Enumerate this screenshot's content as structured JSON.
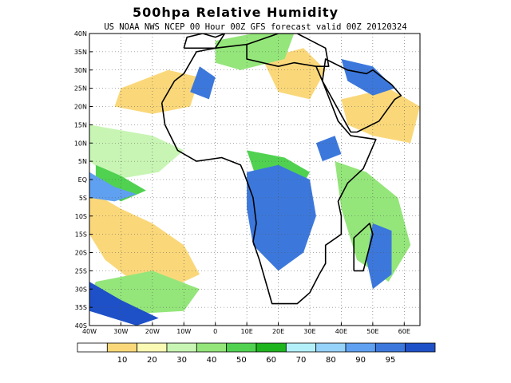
{
  "title": "500hpa Relative Humidity",
  "subtitle": "US NOAA NWS NCEP 00 Hour 00Z GFS forecast valid 00Z 20120324",
  "map": {
    "lon_range": [
      -40,
      65
    ],
    "lat_range": [
      -40,
      40
    ],
    "lat_ticks": [
      {
        "value": 40,
        "label": "40N"
      },
      {
        "value": 35,
        "label": "35N"
      },
      {
        "value": 30,
        "label": "30N"
      },
      {
        "value": 25,
        "label": "25N"
      },
      {
        "value": 20,
        "label": "20N"
      },
      {
        "value": 15,
        "label": "15N"
      },
      {
        "value": 10,
        "label": "10N"
      },
      {
        "value": 5,
        "label": "5N"
      },
      {
        "value": 0,
        "label": "EQ"
      },
      {
        "value": -5,
        "label": "5S"
      },
      {
        "value": -10,
        "label": "10S"
      },
      {
        "value": -15,
        "label": "15S"
      },
      {
        "value": -20,
        "label": "20S"
      },
      {
        "value": -25,
        "label": "25S"
      },
      {
        "value": -30,
        "label": "30S"
      },
      {
        "value": -35,
        "label": "35S"
      },
      {
        "value": -40,
        "label": "40S"
      }
    ],
    "lon_ticks": [
      {
        "value": -40,
        "label": "40W"
      },
      {
        "value": -30,
        "label": "30W"
      },
      {
        "value": -20,
        "label": "20W"
      },
      {
        "value": -10,
        "label": "10W"
      },
      {
        "value": 0,
        "label": "0"
      },
      {
        "value": 10,
        "label": "10E"
      },
      {
        "value": 20,
        "label": "20E"
      },
      {
        "value": 30,
        "label": "30E"
      },
      {
        "value": 40,
        "label": "40E"
      },
      {
        "value": 50,
        "label": "50E"
      },
      {
        "value": 60,
        "label": "60E"
      }
    ],
    "humidity_regions": [
      {
        "level": 10,
        "color": "#fad87a",
        "poly": [
          [
            -40,
            -3
          ],
          [
            -30,
            -8
          ],
          [
            -20,
            -12
          ],
          [
            -10,
            -18
          ],
          [
            -5,
            -26
          ],
          [
            -20,
            -32
          ],
          [
            -35,
            -22
          ],
          [
            -40,
            -15
          ]
        ]
      },
      {
        "level": 10,
        "color": "#fad87a",
        "poly": [
          [
            -30,
            25
          ],
          [
            -15,
            30
          ],
          [
            -5,
            28
          ],
          [
            -8,
            20
          ],
          [
            -20,
            18
          ],
          [
            -32,
            20
          ]
        ]
      },
      {
        "level": 10,
        "color": "#fad87a",
        "poly": [
          [
            15,
            33
          ],
          [
            28,
            36
          ],
          [
            35,
            30
          ],
          [
            30,
            22
          ],
          [
            20,
            24
          ]
        ]
      },
      {
        "level": 10,
        "color": "#fad87a",
        "poly": [
          [
            40,
            22
          ],
          [
            55,
            25
          ],
          [
            65,
            20
          ],
          [
            62,
            10
          ],
          [
            50,
            12
          ],
          [
            42,
            15
          ]
        ]
      },
      {
        "level": 30,
        "color": "#c8f5b4",
        "poly": [
          [
            -40,
            15
          ],
          [
            -20,
            12
          ],
          [
            -10,
            8
          ],
          [
            -18,
            2
          ],
          [
            -32,
            0
          ],
          [
            -40,
            5
          ]
        ]
      },
      {
        "level": 40,
        "color": "#94e67a",
        "poly": [
          [
            -38,
            -28
          ],
          [
            -20,
            -25
          ],
          [
            -5,
            -30
          ],
          [
            -10,
            -36
          ],
          [
            -30,
            -37
          ],
          [
            -40,
            -32
          ]
        ]
      },
      {
        "level": 40,
        "color": "#94e67a",
        "poly": [
          [
            0,
            38
          ],
          [
            12,
            40
          ],
          [
            25,
            40
          ],
          [
            22,
            33
          ],
          [
            8,
            30
          ],
          [
            0,
            32
          ]
        ]
      },
      {
        "level": 40,
        "color": "#94e67a",
        "poly": [
          [
            38,
            5
          ],
          [
            48,
            2
          ],
          [
            58,
            -5
          ],
          [
            62,
            -18
          ],
          [
            55,
            -28
          ],
          [
            45,
            -22
          ],
          [
            40,
            -8
          ]
        ]
      },
      {
        "level": 50,
        "color": "#50d250",
        "poly": [
          [
            -38,
            4
          ],
          [
            -30,
            1
          ],
          [
            -22,
            -3
          ],
          [
            -30,
            -6
          ],
          [
            -38,
            -2
          ]
        ]
      },
      {
        "level": 50,
        "color": "#50d250",
        "poly": [
          [
            10,
            8
          ],
          [
            22,
            6
          ],
          [
            30,
            2
          ],
          [
            26,
            -4
          ],
          [
            14,
            -2
          ]
        ]
      },
      {
        "level": 80,
        "color": "#5fa0f0",
        "poly": [
          [
            -40,
            2
          ],
          [
            -32,
            -2
          ],
          [
            -25,
            -4
          ],
          [
            -32,
            -6
          ],
          [
            -40,
            -5
          ]
        ]
      },
      {
        "level": 90,
        "color": "#3c78dc",
        "poly": [
          [
            10,
            2
          ],
          [
            20,
            4
          ],
          [
            30,
            0
          ],
          [
            32,
            -10
          ],
          [
            28,
            -20
          ],
          [
            20,
            -25
          ],
          [
            12,
            -18
          ],
          [
            10,
            -8
          ]
        ]
      },
      {
        "level": 90,
        "color": "#3c78dc",
        "poly": [
          [
            -5,
            31
          ],
          [
            0,
            28
          ],
          [
            -2,
            22
          ],
          [
            -8,
            24
          ]
        ]
      },
      {
        "level": 90,
        "color": "#3c78dc",
        "poly": [
          [
            32,
            10
          ],
          [
            38,
            12
          ],
          [
            40,
            7
          ],
          [
            34,
            5
          ]
        ]
      },
      {
        "level": 90,
        "color": "#3c78dc",
        "poly": [
          [
            40,
            33
          ],
          [
            50,
            31
          ],
          [
            57,
            25
          ],
          [
            50,
            23
          ],
          [
            42,
            27
          ]
        ]
      },
      {
        "level": 90,
        "color": "#3c78dc",
        "poly": [
          [
            50,
            -12
          ],
          [
            56,
            -14
          ],
          [
            56,
            -26
          ],
          [
            50,
            -30
          ],
          [
            48,
            -22
          ]
        ]
      },
      {
        "level": 95,
        "color": "#1e50c8",
        "poly": [
          [
            -40,
            -28
          ],
          [
            -30,
            -33
          ],
          [
            -18,
            -38
          ],
          [
            -25,
            -40
          ],
          [
            -40,
            -36
          ]
        ]
      }
    ],
    "land_outlines": [
      [
        [
          -17,
          21
        ],
        [
          -16,
          15
        ],
        [
          -12,
          8
        ],
        [
          -6,
          5
        ],
        [
          2,
          6
        ],
        [
          8,
          4
        ],
        [
          9,
          2
        ],
        [
          12,
          -5
        ],
        [
          13,
          -12
        ],
        [
          12,
          -17
        ],
        [
          14,
          -22
        ],
        [
          16,
          -28
        ],
        [
          18,
          -34
        ],
        [
          22,
          -34
        ],
        [
          26,
          -34
        ],
        [
          30,
          -31
        ],
        [
          33,
          -26
        ],
        [
          35,
          -23
        ],
        [
          35,
          -18
        ],
        [
          40,
          -15
        ],
        [
          40,
          -10
        ],
        [
          39,
          -6
        ],
        [
          42,
          -1
        ],
        [
          47,
          3
        ],
        [
          51,
          11
        ],
        [
          43,
          12
        ],
        [
          39,
          16
        ],
        [
          34,
          27
        ],
        [
          32,
          31
        ],
        [
          25,
          32
        ],
        [
          20,
          31
        ],
        [
          10,
          33
        ],
        [
          10,
          37
        ],
        [
          0,
          36
        ],
        [
          -6,
          35
        ],
        [
          -10,
          29
        ],
        [
          -13,
          27
        ],
        [
          -17,
          21
        ]
      ],
      [
        [
          44,
          -25
        ],
        [
          47,
          -25
        ],
        [
          50,
          -15
        ],
        [
          49,
          -12
        ],
        [
          44,
          -16
        ],
        [
          44,
          -25
        ]
      ],
      [
        [
          -10,
          36
        ],
        [
          -9,
          39
        ],
        [
          -4,
          40
        ],
        [
          0,
          39
        ],
        [
          3,
          40
        ],
        [
          0,
          36
        ],
        [
          -6,
          36
        ],
        [
          -10,
          36
        ]
      ],
      [
        [
          10,
          37
        ],
        [
          20,
          40
        ],
        [
          26,
          40
        ],
        [
          35,
          36
        ],
        [
          36,
          31
        ],
        [
          32,
          31
        ]
      ],
      [
        [
          34,
          27
        ],
        [
          43,
          13
        ],
        [
          45,
          13
        ],
        [
          52,
          16
        ],
        [
          57,
          22
        ],
        [
          59,
          23
        ],
        [
          56,
          26
        ],
        [
          50,
          30
        ],
        [
          48,
          29
        ],
        [
          42,
          30
        ],
        [
          35,
          33
        ],
        [
          34,
          27
        ]
      ]
    ]
  },
  "legend": {
    "colors": [
      "#ffffff",
      "#fad87a",
      "#fafab4",
      "#c8f5b4",
      "#94e67a",
      "#50d250",
      "#1eb41e",
      "#b4f0fa",
      "#96d2fa",
      "#5fa0f0",
      "#3c78dc",
      "#1e50c8"
    ],
    "labels": [
      "10",
      "20",
      "30",
      "40",
      "50",
      "60",
      "70",
      "80",
      "90",
      "95"
    ]
  }
}
